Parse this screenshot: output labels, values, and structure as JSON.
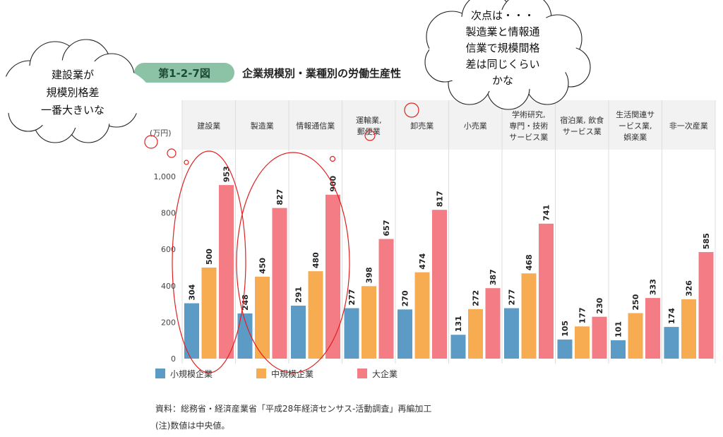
{
  "figure": {
    "label": "第1-2-7図",
    "title": "企業規模別・業種別の労働生産性",
    "label_bg": "#8cc3a6"
  },
  "callouts": {
    "left": [
      "建設業が",
      "規模別格差",
      "一番大きいな"
    ],
    "right": [
      "次点は・・・",
      "製造業と情報通",
      "信業で規模間格",
      "差は同じくらい",
      "かな"
    ]
  },
  "chart_data": {
    "type": "bar",
    "unit": "(万円)",
    "categories": [
      [
        "建設業"
      ],
      [
        "製造業"
      ],
      [
        "情報通信業"
      ],
      [
        "運輸業,",
        "郵便業"
      ],
      [
        "卸売業"
      ],
      [
        "小売業"
      ],
      [
        "学術研究,",
        "専門・技術",
        "サービス業"
      ],
      [
        "宿泊業, 飲食",
        "サービス業"
      ],
      [
        "生活関連サ",
        "ービス業,",
        "娯楽業"
      ],
      [
        "非一次産業"
      ]
    ],
    "series": [
      {
        "name": "小規模企業",
        "color": "#5b9bc6",
        "values": [
          304,
          248,
          291,
          277,
          270,
          131,
          277,
          105,
          101,
          174
        ]
      },
      {
        "name": "中規模企業",
        "color": "#f8ac52",
        "values": [
          500,
          450,
          480,
          398,
          474,
          272,
          468,
          177,
          250,
          326
        ]
      },
      {
        "name": "大企業",
        "color": "#f47d85",
        "values": [
          953,
          827,
          900,
          657,
          817,
          387,
          741,
          230,
          333,
          585
        ]
      }
    ],
    "yticks": [
      0,
      200,
      400,
      600,
      800,
      "1,000"
    ],
    "ylim": [
      0,
      1000
    ],
    "grid": false,
    "legend_position": "bottom-left"
  },
  "notes": {
    "source": "資料：総務省・経済産業省「平成28年経済センサス‐活動調査」再編加工",
    "note": "(注)数値は中央値。"
  },
  "colors": {
    "annotation": "#e02020",
    "header_bg": "#f2f2f2",
    "separator": "#dddddd"
  }
}
